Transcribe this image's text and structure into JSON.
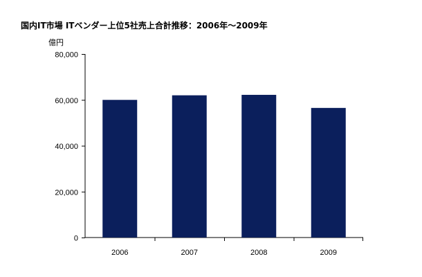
{
  "chart_data": {
    "type": "bar",
    "title": "国内IT市場 ITベンダー上位5社売上合計推移：2006年～2009年",
    "ylabel": "億円",
    "xlabel": "",
    "categories": [
      "2006",
      "2007",
      "2008",
      "2009"
    ],
    "values": [
      60000,
      62000,
      62200,
      56500
    ],
    "ylim": [
      0,
      80000
    ],
    "yticks": [
      0,
      20000,
      40000,
      60000,
      80000
    ],
    "ytick_labels": [
      "0",
      "20,000",
      "40,000",
      "60,000",
      "80,000"
    ],
    "bar_color": "#0b1f5c",
    "grid": false,
    "legend": "none"
  }
}
